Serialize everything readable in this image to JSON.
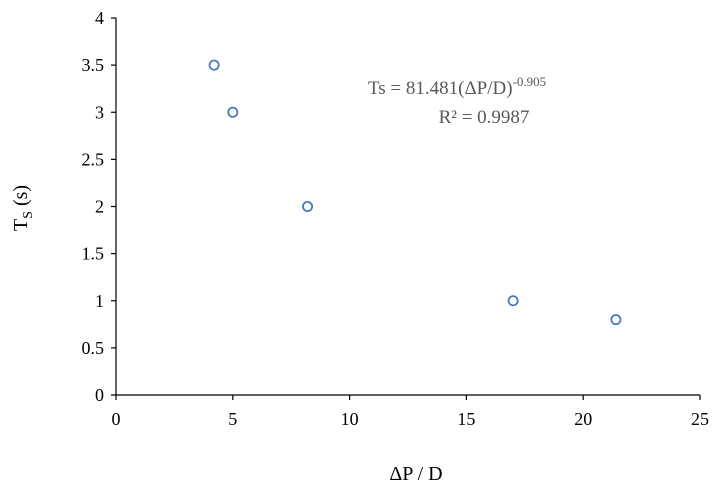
{
  "chart_data": {
    "type": "scatter",
    "xlabel": "ΔP / D",
    "ylabel": {
      "main": "T",
      "sub": "S",
      "rest": " (s)"
    },
    "xlim": [
      0,
      25
    ],
    "ylim": [
      0,
      4
    ],
    "xticks": [
      0,
      5,
      10,
      15,
      20,
      25
    ],
    "yticks": [
      0,
      0.5,
      1,
      1.5,
      2,
      2.5,
      3,
      3.5,
      4
    ],
    "xtick_labels": [
      "0",
      "5",
      "10",
      "15",
      "20",
      "25"
    ],
    "ytick_labels": [
      "0",
      "0.5",
      "1",
      "1.5",
      "2",
      "2.5",
      "3",
      "3.5",
      "4"
    ],
    "grid": false,
    "series": [
      {
        "x": [
          4.2,
          5.0,
          8.2,
          17.0,
          21.4
        ],
        "y": [
          3.5,
          3.0,
          2.0,
          1.0,
          0.8
        ]
      }
    ],
    "trendline": {
      "type": "power",
      "coefficient": 81.481,
      "exponent": -0.905,
      "x_range": [
        4.1,
        21.5
      ],
      "style": "dotted"
    },
    "annotation": {
      "equation_base": "Ts = 81.481(ΔP/D)",
      "equation_exponent": "-0.905",
      "r_squared": "R² = 0.9987"
    },
    "colors": {
      "marker": "#4a7ab8",
      "trendline": "#4a7ab8",
      "axis": "#000000",
      "annotation": "#595959"
    }
  }
}
